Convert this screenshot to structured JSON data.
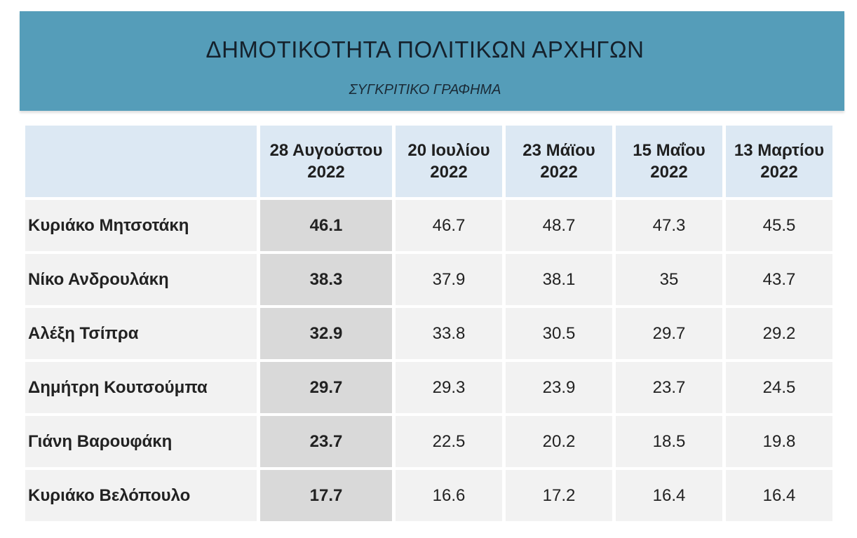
{
  "header": {
    "title": "ΔΗΜΟΤΙΚΟΤΗΤΑ ΠΟΛΙΤΙΚΩΝ ΑΡΧΗΓΩΝ",
    "subtitle": "ΣΥΓΚΡΙΤΙΚΟ ΓΡΑΦΗΜΑ"
  },
  "colors": {
    "banner": "#559db9",
    "header_cells": "#dce8f3",
    "body_cells": "#f2f2f2",
    "highlight_column": "#d9d9d9"
  },
  "chart_data": {
    "type": "table",
    "title": "ΔΗΜΟΤΙΚΟΤΗΤΑ ΠΟΛΙΤΙΚΩΝ ΑΡΧΗΓΩΝ",
    "subtitle": "ΣΥΓΚΡΙΤΙΚΟ ΓΡΑΦΗΜΑ",
    "columns": [
      [
        "28 Αυγούστου",
        "2022"
      ],
      [
        "20 Ιουλίου",
        "2022"
      ],
      [
        "23 Μάϊου",
        "2022"
      ],
      [
        "15 Μαΐου",
        "2022"
      ],
      [
        "13 Μαρτίου",
        "2022"
      ]
    ],
    "rows": [
      {
        "name": "Κυριάκο Μητσοτάκη",
        "values": [
          "46.1",
          "46.7",
          "48.7",
          "47.3",
          "45.5"
        ]
      },
      {
        "name": "Νίκο Ανδρουλάκη",
        "values": [
          "38.3",
          "37.9",
          "38.1",
          "35",
          "43.7"
        ]
      },
      {
        "name": "Αλέξη Τσίπρα",
        "values": [
          "32.9",
          "33.8",
          "30.5",
          "29.7",
          "29.2"
        ]
      },
      {
        "name": "Δημήτρη Κουτσούμπα",
        "values": [
          "29.7",
          "29.3",
          "23.9",
          "23.7",
          "24.5"
        ]
      },
      {
        "name": "Γιάνη Βαρουφάκη",
        "values": [
          "23.7",
          "22.5",
          "20.2",
          "18.5",
          "19.8"
        ]
      },
      {
        "name": "Κυριάκο Βελόπουλο",
        "values": [
          "17.7",
          "16.6",
          "17.2",
          "16.4",
          "16.4"
        ]
      }
    ]
  }
}
